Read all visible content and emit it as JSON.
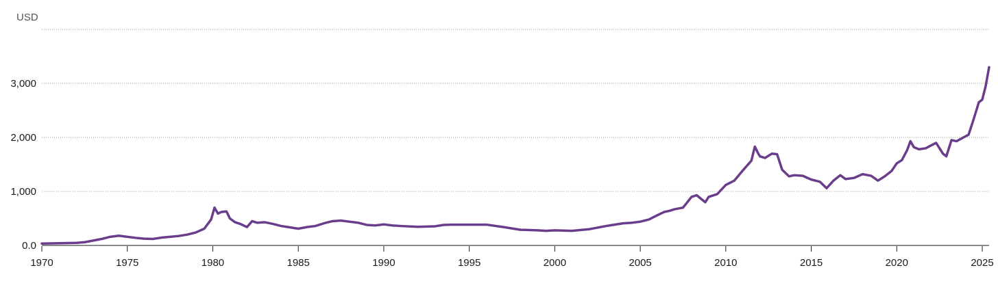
{
  "chart_data": {
    "type": "line",
    "unit_label": "USD",
    "y_ticks": [
      {
        "value": 0,
        "label": "0.0"
      },
      {
        "value": 1000,
        "label": "1,000"
      },
      {
        "value": 2000,
        "label": "2,000"
      },
      {
        "value": 3000,
        "label": "3,000"
      },
      {
        "value": 4000,
        "label": ""
      }
    ],
    "x_ticks": [
      {
        "value": 1970,
        "label": "1970"
      },
      {
        "value": 1975,
        "label": "1975"
      },
      {
        "value": 1980,
        "label": "1980"
      },
      {
        "value": 1985,
        "label": "1985"
      },
      {
        "value": 1990,
        "label": "1990"
      },
      {
        "value": 1995,
        "label": "1995"
      },
      {
        "value": 2000,
        "label": "2000"
      },
      {
        "value": 2005,
        "label": "2005"
      },
      {
        "value": 2010,
        "label": "2010"
      },
      {
        "value": 2015,
        "label": "2015"
      },
      {
        "value": 2020,
        "label": "2020"
      },
      {
        "value": 2025,
        "label": "2025"
      }
    ],
    "xlim": [
      1970,
      2025.4
    ],
    "ylim": [
      0,
      4000
    ],
    "grid": true,
    "line_color": "#6a3d8c",
    "series": [
      {
        "x": [
          1970,
          1971,
          1972,
          1972.5,
          1973,
          1973.5,
          1974,
          1974.5,
          1975,
          1975.5,
          1976,
          1976.5,
          1977,
          1977.5,
          1978,
          1978.5,
          1979,
          1979.5,
          1979.9,
          1980.1,
          1980.3,
          1980.5,
          1980.8,
          1981,
          1981.3,
          1981.6,
          1982,
          1982.3,
          1982.6,
          1983,
          1983.2,
          1983.5,
          1984,
          1984.5,
          1985,
          1985.5,
          1986,
          1986.5,
          1987,
          1987.5,
          1988,
          1988.5,
          1989,
          1989.5,
          1990,
          1990.5,
          1991,
          1992,
          1993,
          1993.5,
          1994,
          1995,
          1996,
          1997,
          1998,
          1999,
          1999.5,
          2000,
          2001,
          2002,
          2003,
          2004,
          2004.5,
          2005,
          2005.5,
          2006,
          2006.4,
          2006.7,
          2007,
          2007.5,
          2008,
          2008.3,
          2008.8,
          2009,
          2009.5,
          2010,
          2010.5,
          2011,
          2011.5,
          2011.7,
          2011.9,
          2012,
          2012.3,
          2012.7,
          2013,
          2013.3,
          2013.7,
          2014,
          2014.5,
          2015,
          2015.5,
          2015.9,
          2016.3,
          2016.7,
          2017,
          2017.5,
          2018,
          2018.5,
          2018.9,
          2019.3,
          2019.7,
          2020,
          2020.3,
          2020.6,
          2020.8,
          2021,
          2021.3,
          2021.7,
          2022,
          2022.3,
          2022.7,
          2022.9,
          2023.2,
          2023.5,
          2023.9,
          2024.2,
          2024.5,
          2024.8,
          2025,
          2025.2,
          2025.4
        ],
        "values": [
          35,
          41,
          48,
          60,
          90,
          120,
          160,
          180,
          160,
          140,
          125,
          120,
          145,
          160,
          175,
          200,
          240,
          310,
          480,
          700,
          590,
          620,
          630,
          500,
          430,
          400,
          340,
          450,
          420,
          430,
          420,
          400,
          360,
          335,
          310,
          340,
          360,
          410,
          450,
          460,
          440,
          420,
          380,
          370,
          390,
          370,
          360,
          345,
          355,
          380,
          385,
          385,
          385,
          340,
          290,
          280,
          270,
          280,
          270,
          300,
          360,
          410,
          420,
          440,
          480,
          560,
          620,
          640,
          670,
          700,
          900,
          930,
          800,
          900,
          950,
          1120,
          1200,
          1390,
          1570,
          1830,
          1700,
          1650,
          1620,
          1700,
          1690,
          1400,
          1280,
          1300,
          1290,
          1220,
          1180,
          1060,
          1200,
          1300,
          1230,
          1250,
          1320,
          1290,
          1200,
          1280,
          1380,
          1520,
          1580,
          1760,
          1930,
          1820,
          1780,
          1800,
          1850,
          1900,
          1700,
          1650,
          1950,
          1930,
          2000,
          2050,
          2340,
          2650,
          2700,
          2950,
          3300
        ]
      }
    ]
  }
}
